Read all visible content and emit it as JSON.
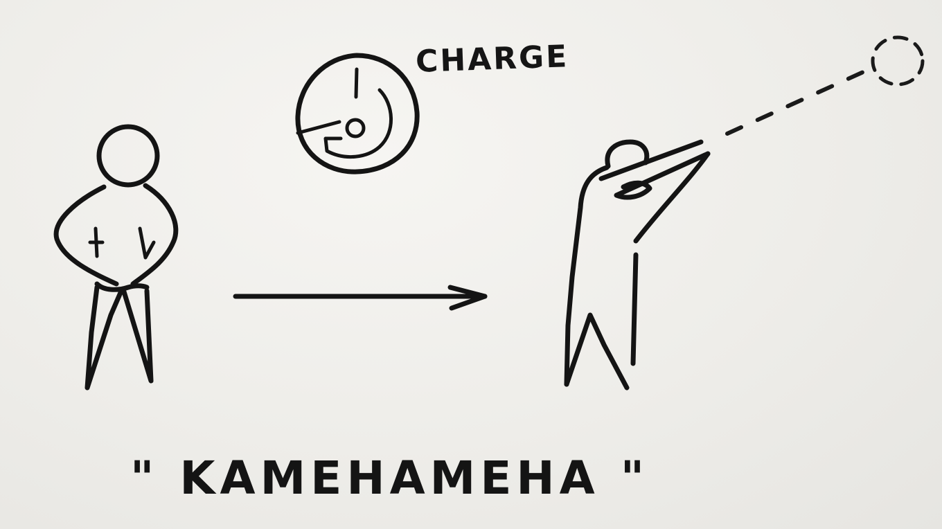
{
  "labels": {
    "charge": "CHARGE",
    "move_name": "\" KAMEHAMEHA \""
  }
}
